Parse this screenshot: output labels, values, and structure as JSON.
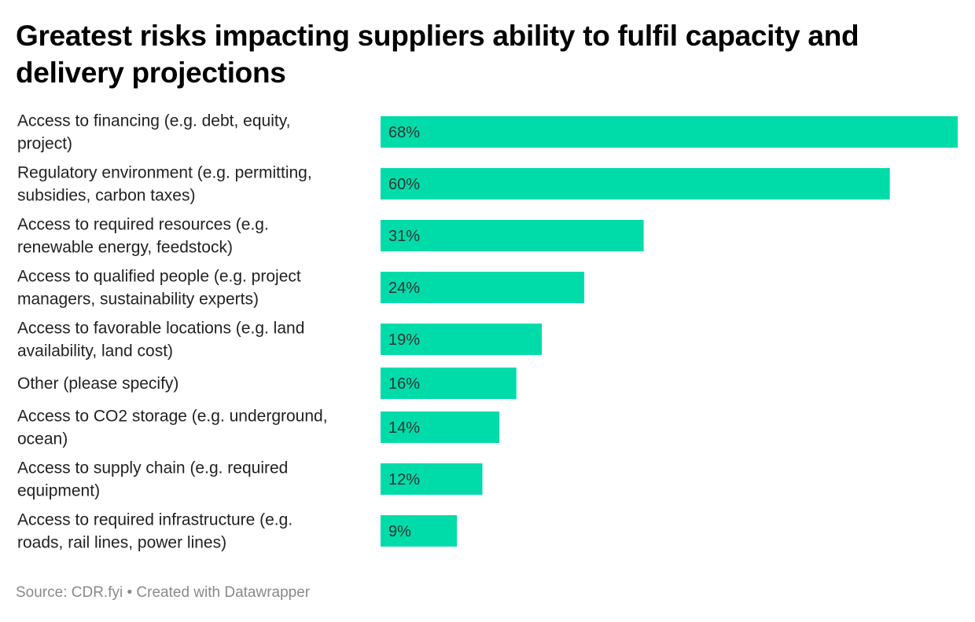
{
  "title": "Greatest risks impacting suppliers ability to fulfil capacity and delivery projections",
  "footer": {
    "source": "Source: CDR.fyi",
    "separator": "•",
    "credit": "Created with Datawrapper"
  },
  "colors": {
    "bar": "#00dca9"
  },
  "chart_data": {
    "type": "bar",
    "orientation": "horizontal",
    "categories": [
      [
        "Access to financing (e.g. debt, equity,",
        "project)"
      ],
      [
        "Regulatory environment (e.g. permitting,",
        "subsidies, carbon taxes)"
      ],
      [
        "Access to required resources (e.g.",
        "renewable energy, feedstock)"
      ],
      [
        "Access to qualified people (e.g. project",
        "managers, sustainability experts)"
      ],
      [
        "Access to favorable locations (e.g. land",
        "availability, land cost)"
      ],
      [
        "Other (please specify)"
      ],
      [
        "Access to CO2 storage (e.g. underground,",
        "ocean)"
      ],
      [
        "Access to supply chain (e.g. required",
        "equipment)"
      ],
      [
        "Access to required infrastructure (e.g.",
        "roads, rail lines, power lines)"
      ]
    ],
    "values": [
      68,
      60,
      31,
      24,
      19,
      16,
      14,
      12,
      9
    ],
    "value_labels": [
      "68%",
      "60%",
      "31%",
      "24%",
      "19%",
      "16%",
      "14%",
      "12%",
      "9%"
    ],
    "xlim": [
      0,
      68
    ],
    "grid": false,
    "legend": "none"
  }
}
